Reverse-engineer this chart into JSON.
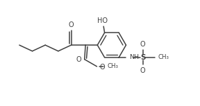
{
  "bg_color": "#ffffff",
  "line_color": "#404040",
  "line_width": 1.1,
  "figsize": [
    2.88,
    1.53
  ],
  "dpi": 100,
  "xlim": [
    0,
    10
  ],
  "ylim": [
    0,
    5.3
  ]
}
